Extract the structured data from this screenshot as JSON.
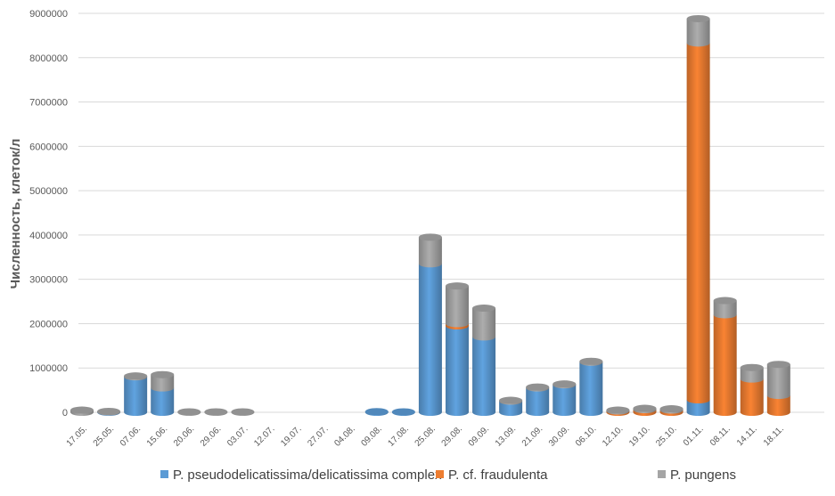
{
  "chart_data": {
    "type": "bar",
    "stacked": true,
    "title": "",
    "xlabel": "",
    "ylabel": "Численность, клеток/л",
    "ylim": [
      0,
      9000000
    ],
    "yticks": [
      0,
      1000000,
      2000000,
      3000000,
      4000000,
      5000000,
      6000000,
      7000000,
      8000000,
      9000000
    ],
    "ytick_labels": [
      "0",
      "1000000",
      "2000000",
      "3000000",
      "4000000",
      "5000000",
      "6000000",
      "7000000",
      "8000000",
      "9000000"
    ],
    "grid": true,
    "legend_position": "bottom",
    "categories": [
      "17.05.",
      "25.05.",
      "07.06.",
      "15.06.",
      "20.06.",
      "29.06.",
      "03.07.",
      "12.07.",
      "19.07.",
      "27.07.",
      "04.08.",
      "09.08.",
      "17.08.",
      "25.08.",
      "29.08.",
      "09.09.",
      "13.09.",
      "21.09.",
      "30.09.",
      "06.10.",
      "12.10.",
      "19.10.",
      "25.10.",
      "01.11.",
      "08.11.",
      "14.11.",
      "18.11."
    ],
    "series": [
      {
        "name": "P. pseudodelicatissima/delicatissima complex",
        "color": "#5b9bd5",
        "values": [
          0,
          10000,
          800000,
          550000,
          0,
          0,
          0,
          0,
          0,
          0,
          0,
          15000,
          10000,
          3350000,
          1950000,
          1700000,
          250000,
          550000,
          620000,
          1130000,
          0,
          0,
          0,
          280000,
          0,
          0,
          0
        ]
      },
      {
        "name": "P. cf. fraudulenta",
        "color": "#ed7d31",
        "values": [
          0,
          0,
          0,
          0,
          0,
          0,
          0,
          0,
          0,
          0,
          0,
          0,
          0,
          0,
          50000,
          0,
          0,
          0,
          0,
          0,
          30000,
          60000,
          50000,
          8050000,
          2200000,
          750000,
          380000
        ]
      },
      {
        "name": "P. pungens",
        "color": "#a5a5a5",
        "values": [
          50000,
          10000,
          20000,
          300000,
          10000,
          10000,
          10000,
          0,
          0,
          0,
          0,
          0,
          0,
          600000,
          850000,
          650000,
          20000,
          20000,
          20000,
          20000,
          20000,
          30000,
          30000,
          550000,
          320000,
          260000,
          700000
        ]
      }
    ]
  }
}
